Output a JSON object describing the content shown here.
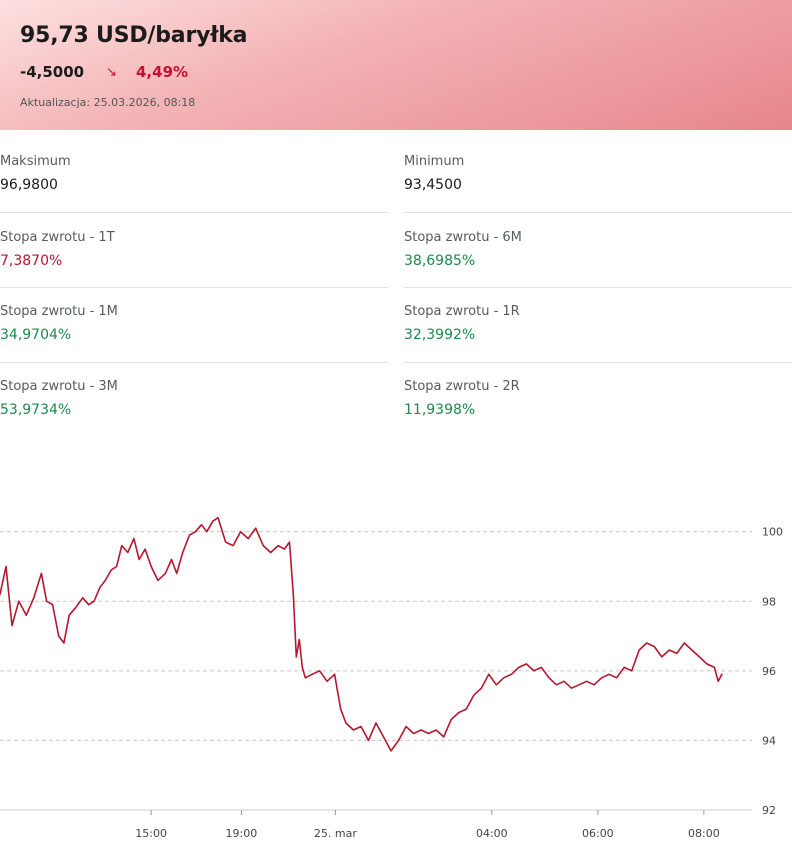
{
  "header": {
    "title": "95,73 USD/baryłka",
    "change_abs": "-4,5000",
    "change_pct": "4,49%",
    "arrow_icon": "arrow-down-right-icon",
    "updated": "Aktualizacja: 25.03.2026, 08:18",
    "colors": {
      "negative": "#c8102e",
      "positive": "#1c8a4a"
    }
  },
  "stats": [
    {
      "label": "Maksimum",
      "value": "96,9800",
      "tone": "neutral"
    },
    {
      "label": "Minimum",
      "value": "93,4500",
      "tone": "neutral"
    },
    {
      "label": "Stopa zwrotu - 1T",
      "value": "7,3870%",
      "tone": "red"
    },
    {
      "label": "Stopa zwrotu - 6M",
      "value": "38,6985%",
      "tone": "green"
    },
    {
      "label": "Stopa zwrotu - 1M",
      "value": "34,9704%",
      "tone": "green"
    },
    {
      "label": "Stopa zwrotu - 1R",
      "value": "32,3992%",
      "tone": "green"
    },
    {
      "label": "Stopa zwrotu - 3M",
      "value": "53,9734%",
      "tone": "green"
    },
    {
      "label": "Stopa zwrotu - 2R",
      "value": "11,9398%",
      "tone": "green"
    }
  ],
  "chart_data": {
    "type": "line",
    "color": "#b5182e",
    "grid": true,
    "ylim": [
      92,
      101.6
    ],
    "yticks": [
      92,
      94,
      96,
      98,
      100
    ],
    "xlim": [
      0,
      100
    ],
    "xticks": [
      {
        "x": 20.1,
        "label": "15:00"
      },
      {
        "x": 32.1,
        "label": "19:00"
      },
      {
        "x": 44.6,
        "label": "25. mar"
      },
      {
        "x": 65.4,
        "label": "04:00"
      },
      {
        "x": 79.5,
        "label": "06:00"
      },
      {
        "x": 93.6,
        "label": "08:00"
      }
    ],
    "series": [
      {
        "x": [
          0,
          0.8,
          1.6,
          2.5,
          3.5,
          4.5,
          5.5,
          6.2,
          7.0,
          7.8,
          8.5,
          9.2,
          10.0,
          11.0,
          11.8,
          12.5,
          13.3,
          14.0,
          14.8,
          15.5,
          16.2,
          17.0,
          17.8,
          18.5,
          19.3,
          20.1,
          21.0,
          22.0,
          22.8,
          23.5,
          24.3,
          25.2,
          26.0,
          26.8,
          27.5,
          28.3,
          29.0,
          30.0,
          31.0,
          32.0,
          33.0,
          34.0,
          35.0,
          36.0,
          37.0,
          37.8,
          38.5,
          39.0,
          39.4,
          39.8,
          40.2,
          40.6,
          41.5,
          42.5,
          43.5,
          44.5,
          45.3,
          46.0,
          47.0,
          48.0,
          49.0,
          50.0,
          51.0,
          52.0,
          53.0,
          54.0,
          55.0,
          56.0,
          57.0,
          58.0,
          59.0,
          60.0,
          61.0,
          62.0,
          63.0,
          64.0,
          65.0,
          66.0,
          67.0,
          68.0,
          69.0,
          70.0,
          71.0,
          72.0,
          73.0,
          74.0,
          75.0,
          76.0,
          77.0,
          78.0,
          79.0,
          80.0,
          81.0,
          82.0,
          83.0,
          84.0,
          85.0,
          86.0,
          87.0,
          88.0,
          89.0,
          90.0,
          91.0,
          92.0,
          93.0,
          94.0,
          95.0,
          95.5,
          96.0
        ],
        "y": [
          98.2,
          99.0,
          97.3,
          98.0,
          97.6,
          98.1,
          98.8,
          98.0,
          97.9,
          97.0,
          96.8,
          97.6,
          97.8,
          98.1,
          97.9,
          98.0,
          98.4,
          98.6,
          98.9,
          99.0,
          99.6,
          99.4,
          99.8,
          99.2,
          99.5,
          99.0,
          98.6,
          98.8,
          99.2,
          98.8,
          99.4,
          99.9,
          100.0,
          100.2,
          100.0,
          100.3,
          100.4,
          99.7,
          99.6,
          100.0,
          99.8,
          100.1,
          99.6,
          99.4,
          99.6,
          99.5,
          99.7,
          98.2,
          96.4,
          96.9,
          96.1,
          95.8,
          95.9,
          96.0,
          95.7,
          95.9,
          94.9,
          94.5,
          94.3,
          94.4,
          94.0,
          94.5,
          94.1,
          93.7,
          94.0,
          94.4,
          94.2,
          94.3,
          94.2,
          94.3,
          94.1,
          94.6,
          94.8,
          94.9,
          95.3,
          95.5,
          95.9,
          95.6,
          95.8,
          95.9,
          96.1,
          96.2,
          96.0,
          96.1,
          95.8,
          95.6,
          95.7,
          95.5,
          95.6,
          95.7,
          95.6,
          95.8,
          95.9,
          95.8,
          96.1,
          96.0,
          96.6,
          96.8,
          96.7,
          96.4,
          96.6,
          96.5,
          96.8,
          96.6,
          96.4,
          96.2,
          96.1,
          95.7,
          95.9
        ]
      }
    ]
  }
}
